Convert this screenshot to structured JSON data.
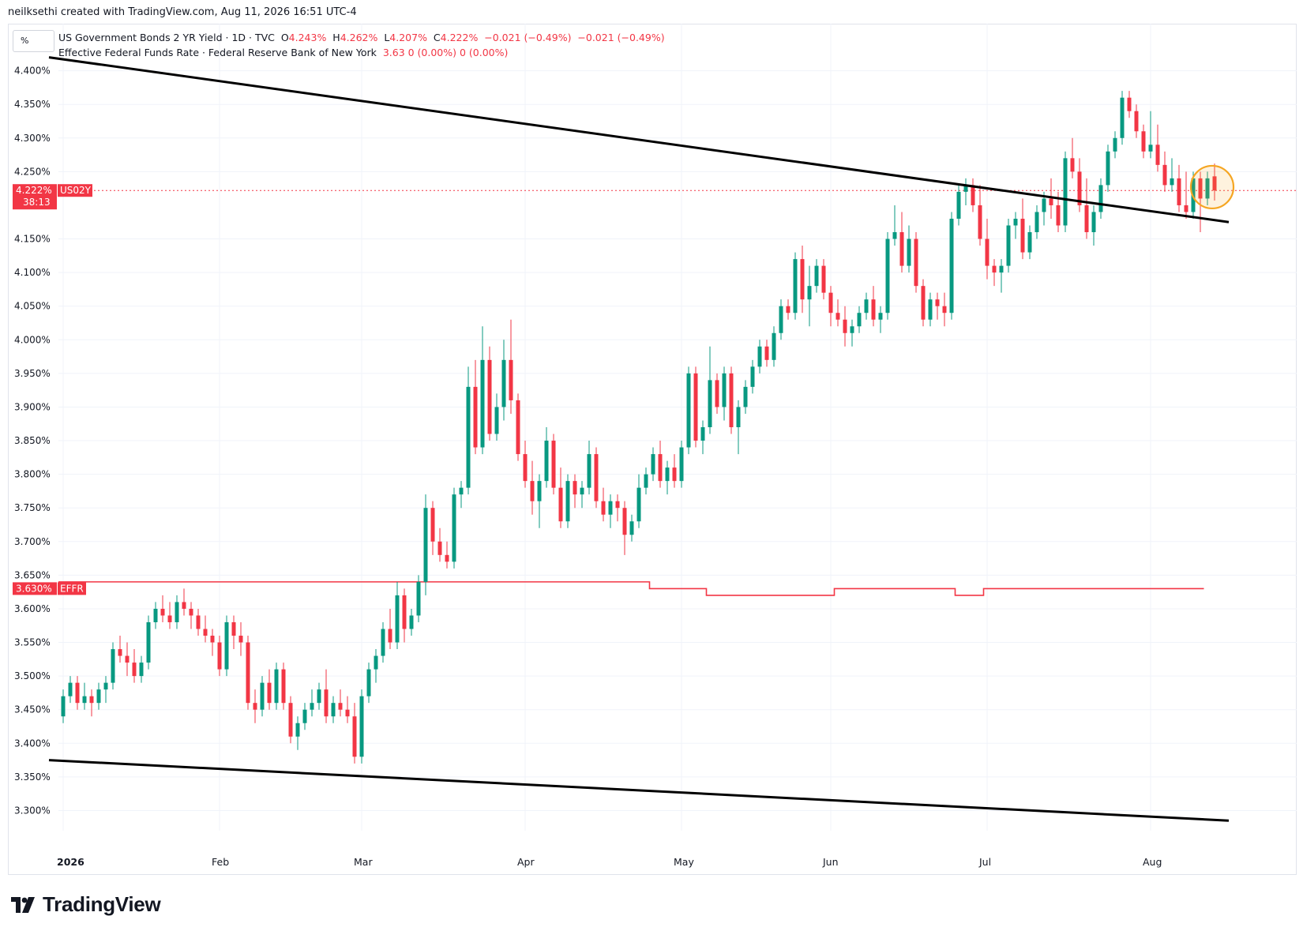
{
  "header": {
    "credit": "neilksethi created with TradingView.com, Aug 11, 2026 16:51 UTC-4"
  },
  "unit_button": "%",
  "legend": {
    "series1": {
      "name": "US Government Bonds 2 YR Yield · 1D · TVC",
      "o_label": "O",
      "o": "4.243%",
      "h_label": "H",
      "h": "4.262%",
      "l_label": "L",
      "l": "4.207%",
      "c_label": "C",
      "c": "4.222%",
      "change": "−0.021 (−0.49%)",
      "change2": "−0.021 (−0.49%)"
    },
    "series2": {
      "name": "Effective Federal Funds Rate · Federal Reserve Bank of New York",
      "values": "3.63  0 (0.00%)  0 (0.00%)"
    }
  },
  "brand": "TradingView",
  "colors": {
    "up": "#089981",
    "down": "#f23645",
    "effr": "#f23645",
    "trend": "#000000",
    "highlight": "#f5a623"
  },
  "chart_data": {
    "type": "candlestick",
    "y_unit": "%",
    "ylim": [
      3.27,
      4.47
    ],
    "y_ticks": [
      "4.400%",
      "4.350%",
      "4.300%",
      "4.250%",
      "4.150%",
      "4.100%",
      "4.050%",
      "4.000%",
      "3.950%",
      "3.900%",
      "3.850%",
      "3.800%",
      "3.750%",
      "3.700%",
      "3.650%",
      "3.600%",
      "3.550%",
      "3.500%",
      "3.450%",
      "3.400%",
      "3.350%",
      "3.300%"
    ],
    "x_ticks": [
      {
        "label": "2026",
        "i": 0
      },
      {
        "label": "Feb",
        "i": 22
      },
      {
        "label": "Mar",
        "i": 42
      },
      {
        "label": "Apr",
        "i": 65
      },
      {
        "label": "May",
        "i": 87
      },
      {
        "label": "Jun",
        "i": 108
      },
      {
        "label": "Jul",
        "i": 130
      },
      {
        "label": "Aug",
        "i": 153
      }
    ],
    "n_days": 166,
    "last_label": {
      "value": 4.222,
      "text": "4.222%",
      "symbol": "US02Y",
      "countdown": "38:13"
    },
    "effr_label": {
      "value": 3.63,
      "text": "3.630%",
      "symbol": "EFFR"
    },
    "candles": [
      [
        3.44,
        3.48,
        3.43,
        3.47
      ],
      [
        3.47,
        3.5,
        3.46,
        3.49
      ],
      [
        3.49,
        3.5,
        3.45,
        3.46
      ],
      [
        3.46,
        3.49,
        3.45,
        3.47
      ],
      [
        3.47,
        3.48,
        3.44,
        3.46
      ],
      [
        3.46,
        3.49,
        3.45,
        3.48
      ],
      [
        3.48,
        3.5,
        3.46,
        3.49
      ],
      [
        3.49,
        3.55,
        3.48,
        3.54
      ],
      [
        3.54,
        3.56,
        3.52,
        3.53
      ],
      [
        3.53,
        3.55,
        3.5,
        3.52
      ],
      [
        3.52,
        3.54,
        3.49,
        3.5
      ],
      [
        3.5,
        3.53,
        3.49,
        3.52
      ],
      [
        3.52,
        3.59,
        3.51,
        3.58
      ],
      [
        3.58,
        3.61,
        3.57,
        3.6
      ],
      [
        3.6,
        3.62,
        3.58,
        3.59
      ],
      [
        3.59,
        3.61,
        3.57,
        3.58
      ],
      [
        3.58,
        3.62,
        3.57,
        3.61
      ],
      [
        3.61,
        3.63,
        3.59,
        3.6
      ],
      [
        3.6,
        3.61,
        3.57,
        3.59
      ],
      [
        3.59,
        3.6,
        3.56,
        3.57
      ],
      [
        3.57,
        3.59,
        3.55,
        3.56
      ],
      [
        3.56,
        3.57,
        3.53,
        3.55
      ],
      [
        3.55,
        3.56,
        3.5,
        3.51
      ],
      [
        3.51,
        3.59,
        3.5,
        3.58
      ],
      [
        3.58,
        3.59,
        3.54,
        3.56
      ],
      [
        3.56,
        3.58,
        3.53,
        3.55
      ],
      [
        3.55,
        3.56,
        3.45,
        3.46
      ],
      [
        3.46,
        3.48,
        3.43,
        3.45
      ],
      [
        3.45,
        3.5,
        3.44,
        3.49
      ],
      [
        3.49,
        3.51,
        3.45,
        3.46
      ],
      [
        3.46,
        3.52,
        3.45,
        3.51
      ],
      [
        3.51,
        3.52,
        3.45,
        3.46
      ],
      [
        3.46,
        3.47,
        3.4,
        3.41
      ],
      [
        3.41,
        3.44,
        3.39,
        3.43
      ],
      [
        3.43,
        3.46,
        3.42,
        3.45
      ],
      [
        3.45,
        3.48,
        3.44,
        3.46
      ],
      [
        3.46,
        3.49,
        3.45,
        3.48
      ],
      [
        3.48,
        3.51,
        3.43,
        3.44
      ],
      [
        3.44,
        3.47,
        3.43,
        3.46
      ],
      [
        3.46,
        3.48,
        3.44,
        3.45
      ],
      [
        3.45,
        3.47,
        3.43,
        3.44
      ],
      [
        3.44,
        3.46,
        3.37,
        3.38
      ],
      [
        3.38,
        3.48,
        3.37,
        3.47
      ],
      [
        3.47,
        3.52,
        3.46,
        3.51
      ],
      [
        3.51,
        3.54,
        3.49,
        3.53
      ],
      [
        3.53,
        3.58,
        3.52,
        3.57
      ],
      [
        3.57,
        3.6,
        3.54,
        3.55
      ],
      [
        3.55,
        3.64,
        3.54,
        3.62
      ],
      [
        3.62,
        3.63,
        3.55,
        3.57
      ],
      [
        3.57,
        3.6,
        3.56,
        3.59
      ],
      [
        3.59,
        3.65,
        3.58,
        3.64
      ],
      [
        3.64,
        3.77,
        3.62,
        3.75
      ],
      [
        3.75,
        3.76,
        3.68,
        3.7
      ],
      [
        3.7,
        3.72,
        3.67,
        3.68
      ],
      [
        3.68,
        3.7,
        3.66,
        3.67
      ],
      [
        3.67,
        3.78,
        3.66,
        3.77
      ],
      [
        3.77,
        3.79,
        3.75,
        3.78
      ],
      [
        3.78,
        3.96,
        3.77,
        3.93
      ],
      [
        3.93,
        3.97,
        3.83,
        3.84
      ],
      [
        3.84,
        4.02,
        3.83,
        3.97
      ],
      [
        3.97,
        3.99,
        3.85,
        3.86
      ],
      [
        3.86,
        3.92,
        3.85,
        3.9
      ],
      [
        3.9,
        4.0,
        3.88,
        3.97
      ],
      [
        3.97,
        4.03,
        3.89,
        3.91
      ],
      [
        3.91,
        3.92,
        3.82,
        3.83
      ],
      [
        3.83,
        3.85,
        3.78,
        3.79
      ],
      [
        3.79,
        3.82,
        3.74,
        3.76
      ],
      [
        3.76,
        3.8,
        3.72,
        3.79
      ],
      [
        3.79,
        3.87,
        3.78,
        3.85
      ],
      [
        3.85,
        3.86,
        3.77,
        3.78
      ],
      [
        3.78,
        3.81,
        3.72,
        3.73
      ],
      [
        3.73,
        3.8,
        3.72,
        3.79
      ],
      [
        3.79,
        3.8,
        3.75,
        3.77
      ],
      [
        3.77,
        3.79,
        3.75,
        3.78
      ],
      [
        3.78,
        3.85,
        3.77,
        3.83
      ],
      [
        3.83,
        3.84,
        3.75,
        3.76
      ],
      [
        3.76,
        3.78,
        3.73,
        3.74
      ],
      [
        3.74,
        3.77,
        3.72,
        3.76
      ],
      [
        3.76,
        3.77,
        3.73,
        3.75
      ],
      [
        3.75,
        3.76,
        3.68,
        3.71
      ],
      [
        3.71,
        3.74,
        3.7,
        3.73
      ],
      [
        3.73,
        3.8,
        3.72,
        3.78
      ],
      [
        3.78,
        3.81,
        3.77,
        3.8
      ],
      [
        3.8,
        3.84,
        3.79,
        3.83
      ],
      [
        3.83,
        3.85,
        3.78,
        3.79
      ],
      [
        3.79,
        3.82,
        3.77,
        3.81
      ],
      [
        3.81,
        3.83,
        3.78,
        3.79
      ],
      [
        3.79,
        3.85,
        3.78,
        3.84
      ],
      [
        3.84,
        3.96,
        3.83,
        3.95
      ],
      [
        3.95,
        3.96,
        3.84,
        3.85
      ],
      [
        3.85,
        3.88,
        3.83,
        3.87
      ],
      [
        3.87,
        3.99,
        3.86,
        3.94
      ],
      [
        3.94,
        3.95,
        3.89,
        3.9
      ],
      [
        3.9,
        3.96,
        3.88,
        3.95
      ],
      [
        3.95,
        3.96,
        3.86,
        3.87
      ],
      [
        3.87,
        3.91,
        3.83,
        3.9
      ],
      [
        3.9,
        3.94,
        3.89,
        3.93
      ],
      [
        3.93,
        3.97,
        3.92,
        3.96
      ],
      [
        3.96,
        4.0,
        3.95,
        3.99
      ],
      [
        3.99,
        4.0,
        3.96,
        3.97
      ],
      [
        3.97,
        4.02,
        3.96,
        4.01
      ],
      [
        4.01,
        4.06,
        4.0,
        4.05
      ],
      [
        4.05,
        4.06,
        4.03,
        4.04
      ],
      [
        4.04,
        4.13,
        4.03,
        4.12
      ],
      [
        4.12,
        4.14,
        4.04,
        4.06
      ],
      [
        4.06,
        4.11,
        4.02,
        4.08
      ],
      [
        4.08,
        4.12,
        4.07,
        4.11
      ],
      [
        4.11,
        4.12,
        4.06,
        4.07
      ],
      [
        4.07,
        4.08,
        4.02,
        4.04
      ],
      [
        4.04,
        4.06,
        4.02,
        4.03
      ],
      [
        4.03,
        4.05,
        3.99,
        4.01
      ],
      [
        4.01,
        4.03,
        3.99,
        4.02
      ],
      [
        4.02,
        4.05,
        4.01,
        4.04
      ],
      [
        4.04,
        4.07,
        4.03,
        4.06
      ],
      [
        4.06,
        4.08,
        4.02,
        4.03
      ],
      [
        4.03,
        4.05,
        4.01,
        4.04
      ],
      [
        4.04,
        4.16,
        4.03,
        4.15
      ],
      [
        4.15,
        4.2,
        4.14,
        4.16
      ],
      [
        4.16,
        4.19,
        4.1,
        4.11
      ],
      [
        4.11,
        4.17,
        4.1,
        4.15
      ],
      [
        4.15,
        4.16,
        4.07,
        4.08
      ],
      [
        4.08,
        4.09,
        4.02,
        4.03
      ],
      [
        4.03,
        4.07,
        4.02,
        4.06
      ],
      [
        4.06,
        4.07,
        4.03,
        4.05
      ],
      [
        4.05,
        4.07,
        4.02,
        4.04
      ],
      [
        4.04,
        4.19,
        4.03,
        4.18
      ],
      [
        4.18,
        4.23,
        4.17,
        4.22
      ],
      [
        4.22,
        4.24,
        4.2,
        4.23
      ],
      [
        4.23,
        4.24,
        4.19,
        4.2
      ],
      [
        4.2,
        4.23,
        4.14,
        4.15
      ],
      [
        4.15,
        4.18,
        4.09,
        4.11
      ],
      [
        4.11,
        4.12,
        4.08,
        4.1
      ],
      [
        4.1,
        4.12,
        4.07,
        4.11
      ],
      [
        4.11,
        4.18,
        4.1,
        4.17
      ],
      [
        4.17,
        4.19,
        4.15,
        4.18
      ],
      [
        4.18,
        4.21,
        4.12,
        4.13
      ],
      [
        4.13,
        4.17,
        4.12,
        4.16
      ],
      [
        4.16,
        4.2,
        4.15,
        4.19
      ],
      [
        4.19,
        4.22,
        4.17,
        4.21
      ],
      [
        4.21,
        4.24,
        4.18,
        4.2
      ],
      [
        4.2,
        4.22,
        4.16,
        4.17
      ],
      [
        4.17,
        4.28,
        4.16,
        4.27
      ],
      [
        4.27,
        4.3,
        4.24,
        4.25
      ],
      [
        4.25,
        4.27,
        4.19,
        4.2
      ],
      [
        4.2,
        4.24,
        4.15,
        4.16
      ],
      [
        4.16,
        4.2,
        4.14,
        4.19
      ],
      [
        4.19,
        4.24,
        4.18,
        4.23
      ],
      [
        4.23,
        4.29,
        4.22,
        4.28
      ],
      [
        4.28,
        4.31,
        4.27,
        4.3
      ],
      [
        4.3,
        4.37,
        4.29,
        4.36
      ],
      [
        4.36,
        4.37,
        4.33,
        4.34
      ],
      [
        4.34,
        4.35,
        4.3,
        4.31
      ],
      [
        4.31,
        4.32,
        4.27,
        4.28
      ],
      [
        4.28,
        4.34,
        4.27,
        4.29
      ],
      [
        4.29,
        4.32,
        4.25,
        4.26
      ],
      [
        4.26,
        4.28,
        4.22,
        4.23
      ],
      [
        4.23,
        4.27,
        4.22,
        4.24
      ],
      [
        4.24,
        4.26,
        4.19,
        4.2
      ],
      [
        4.2,
        4.25,
        4.18,
        4.19
      ],
      [
        4.19,
        4.25,
        4.18,
        4.24
      ],
      [
        4.24,
        4.25,
        4.16,
        4.21
      ],
      [
        4.21,
        4.25,
        4.2,
        4.24
      ],
      [
        4.243,
        4.262,
        4.207,
        4.222
      ]
    ],
    "effr": [
      {
        "from": 0,
        "to": 82,
        "value": 3.64
      },
      {
        "from": 83,
        "to": 90,
        "value": 3.63
      },
      {
        "from": 91,
        "to": 108,
        "value": 3.62
      },
      {
        "from": 109,
        "to": 125,
        "value": 3.63
      },
      {
        "from": 126,
        "to": 129,
        "value": 3.62
      },
      {
        "from": 130,
        "to": 160,
        "value": 3.63
      }
    ],
    "trendlines": [
      {
        "from": [
          -2,
          4.42
        ],
        "to": [
          164,
          4.175
        ]
      },
      {
        "from": [
          -2,
          3.375
        ],
        "to": [
          164,
          3.285
        ]
      }
    ]
  }
}
